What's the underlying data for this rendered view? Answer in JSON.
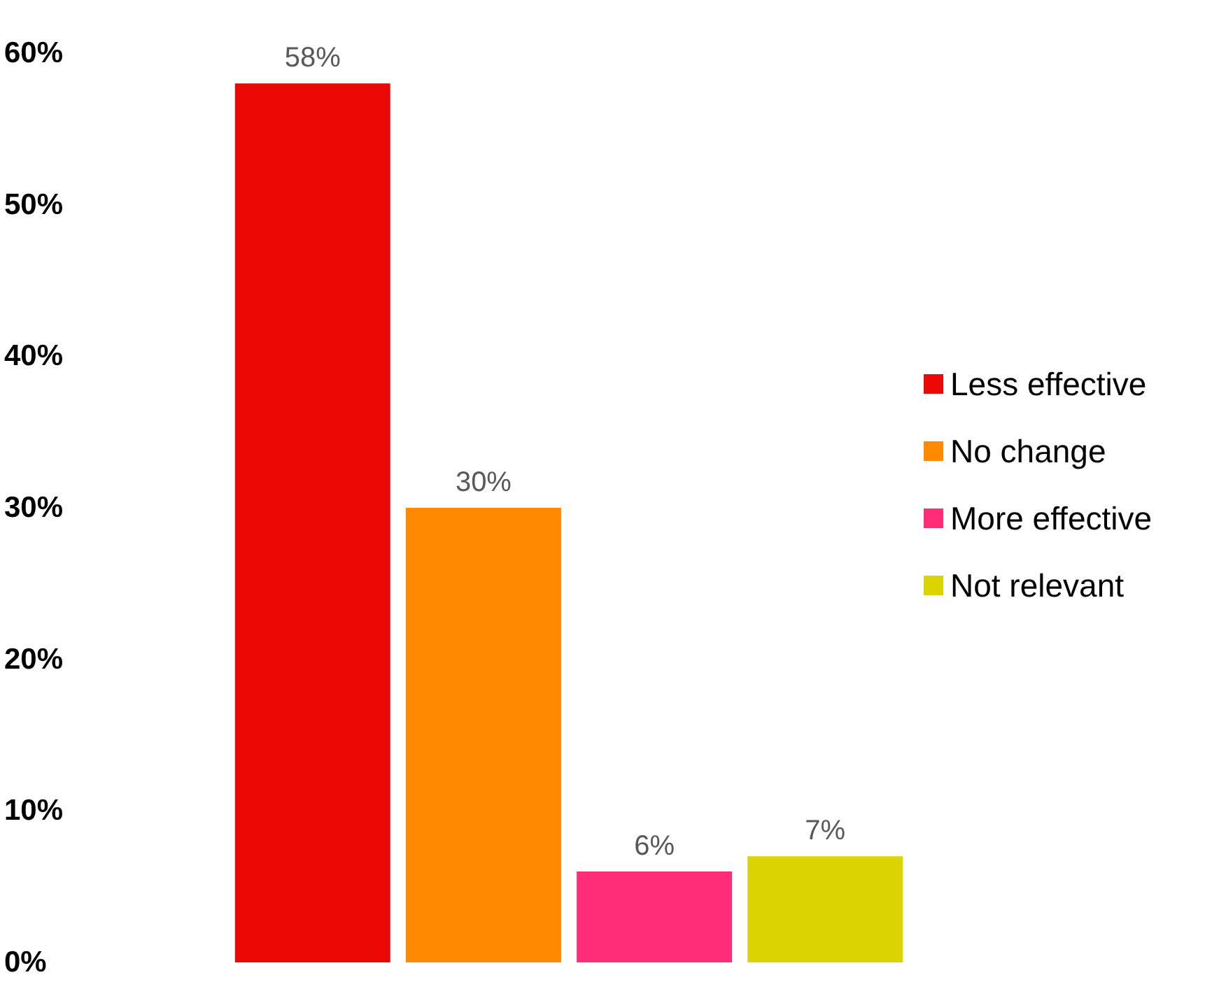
{
  "chart_data": {
    "type": "bar",
    "categories": [
      null
    ],
    "series": [
      {
        "name": "Less effective",
        "color": "#ec0804",
        "values": [
          58
        ],
        "value_labels": [
          "58%"
        ]
      },
      {
        "name": "No change",
        "color": "#ff8a00",
        "values": [
          30
        ],
        "value_labels": [
          "30%"
        ]
      },
      {
        "name": "More effective",
        "color": "#ff2d78",
        "values": [
          6
        ],
        "value_labels": [
          "6%"
        ]
      },
      {
        "name": "Not relevant",
        "color": "#dcd400",
        "values": [
          7
        ],
        "value_labels": [
          "7%"
        ]
      }
    ],
    "ylim": [
      0,
      60
    ],
    "yticks": [
      {
        "value": 0,
        "label": "0%"
      },
      {
        "value": 10,
        "label": "10%"
      },
      {
        "value": 20,
        "label": "20%"
      },
      {
        "value": 30,
        "label": "30%"
      },
      {
        "value": 40,
        "label": "40%"
      },
      {
        "value": 50,
        "label": "50%"
      },
      {
        "value": 60,
        "label": "60%"
      }
    ],
    "grid": false,
    "legend": "right"
  }
}
